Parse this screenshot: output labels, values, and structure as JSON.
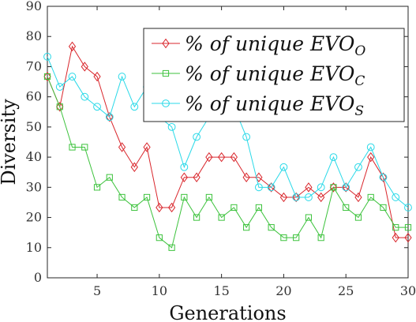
{
  "chart_data": {
    "type": "line",
    "xlabel": "Generations",
    "ylabel": "Diversity",
    "xlim": [
      1,
      30
    ],
    "ylim": [
      0,
      90
    ],
    "xticks": [
      5,
      10,
      15,
      20,
      25,
      30
    ],
    "yticks": [
      0,
      10,
      20,
      30,
      40,
      50,
      60,
      70,
      80,
      90
    ],
    "grid": false,
    "legend_position": "top-right",
    "x": [
      1,
      2,
      3,
      4,
      5,
      6,
      7,
      8,
      9,
      10,
      11,
      12,
      13,
      14,
      15,
      16,
      17,
      18,
      19,
      20,
      21,
      22,
      23,
      24,
      25,
      26,
      27,
      28,
      29,
      30
    ],
    "series": [
      {
        "name": "% of unique EVO",
        "name_subscript": "O",
        "color": "#d9262c",
        "marker": "diamond",
        "values": [
          66.7,
          56.7,
          76.7,
          70,
          66.7,
          53.3,
          43.3,
          36.7,
          43.3,
          23.3,
          23.3,
          33.3,
          33.3,
          40,
          40,
          40,
          33.3,
          33.3,
          30,
          26.7,
          26.7,
          30,
          26.7,
          30,
          30,
          26.7,
          40,
          33.3,
          13.3,
          13.3
        ]
      },
      {
        "name": "% of unique EVO",
        "name_subscript": "C",
        "color": "#3cc23c",
        "marker": "square",
        "values": [
          66.7,
          56.7,
          43.3,
          43.3,
          30,
          33.3,
          26.7,
          23.3,
          26.7,
          13.3,
          10,
          26.7,
          20,
          26.7,
          20,
          23.3,
          16.7,
          23.3,
          16.7,
          13.3,
          13.3,
          20,
          13.3,
          30,
          23.3,
          20,
          26.7,
          23.3,
          16.7,
          16.7
        ]
      },
      {
        "name": "% of unique EVO",
        "name_subscript": "S",
        "color": "#29d9e8",
        "marker": "circle",
        "values": [
          73.3,
          63.3,
          66.7,
          60,
          56.7,
          53.3,
          66.7,
          56.7,
          63.3,
          53.3,
          50,
          36.7,
          46.7,
          53.3,
          56.7,
          56.7,
          46.7,
          30,
          30,
          36.7,
          26.7,
          26.7,
          30,
          40,
          30,
          36.7,
          43.3,
          33.3,
          26.7,
          23.3
        ]
      }
    ]
  }
}
